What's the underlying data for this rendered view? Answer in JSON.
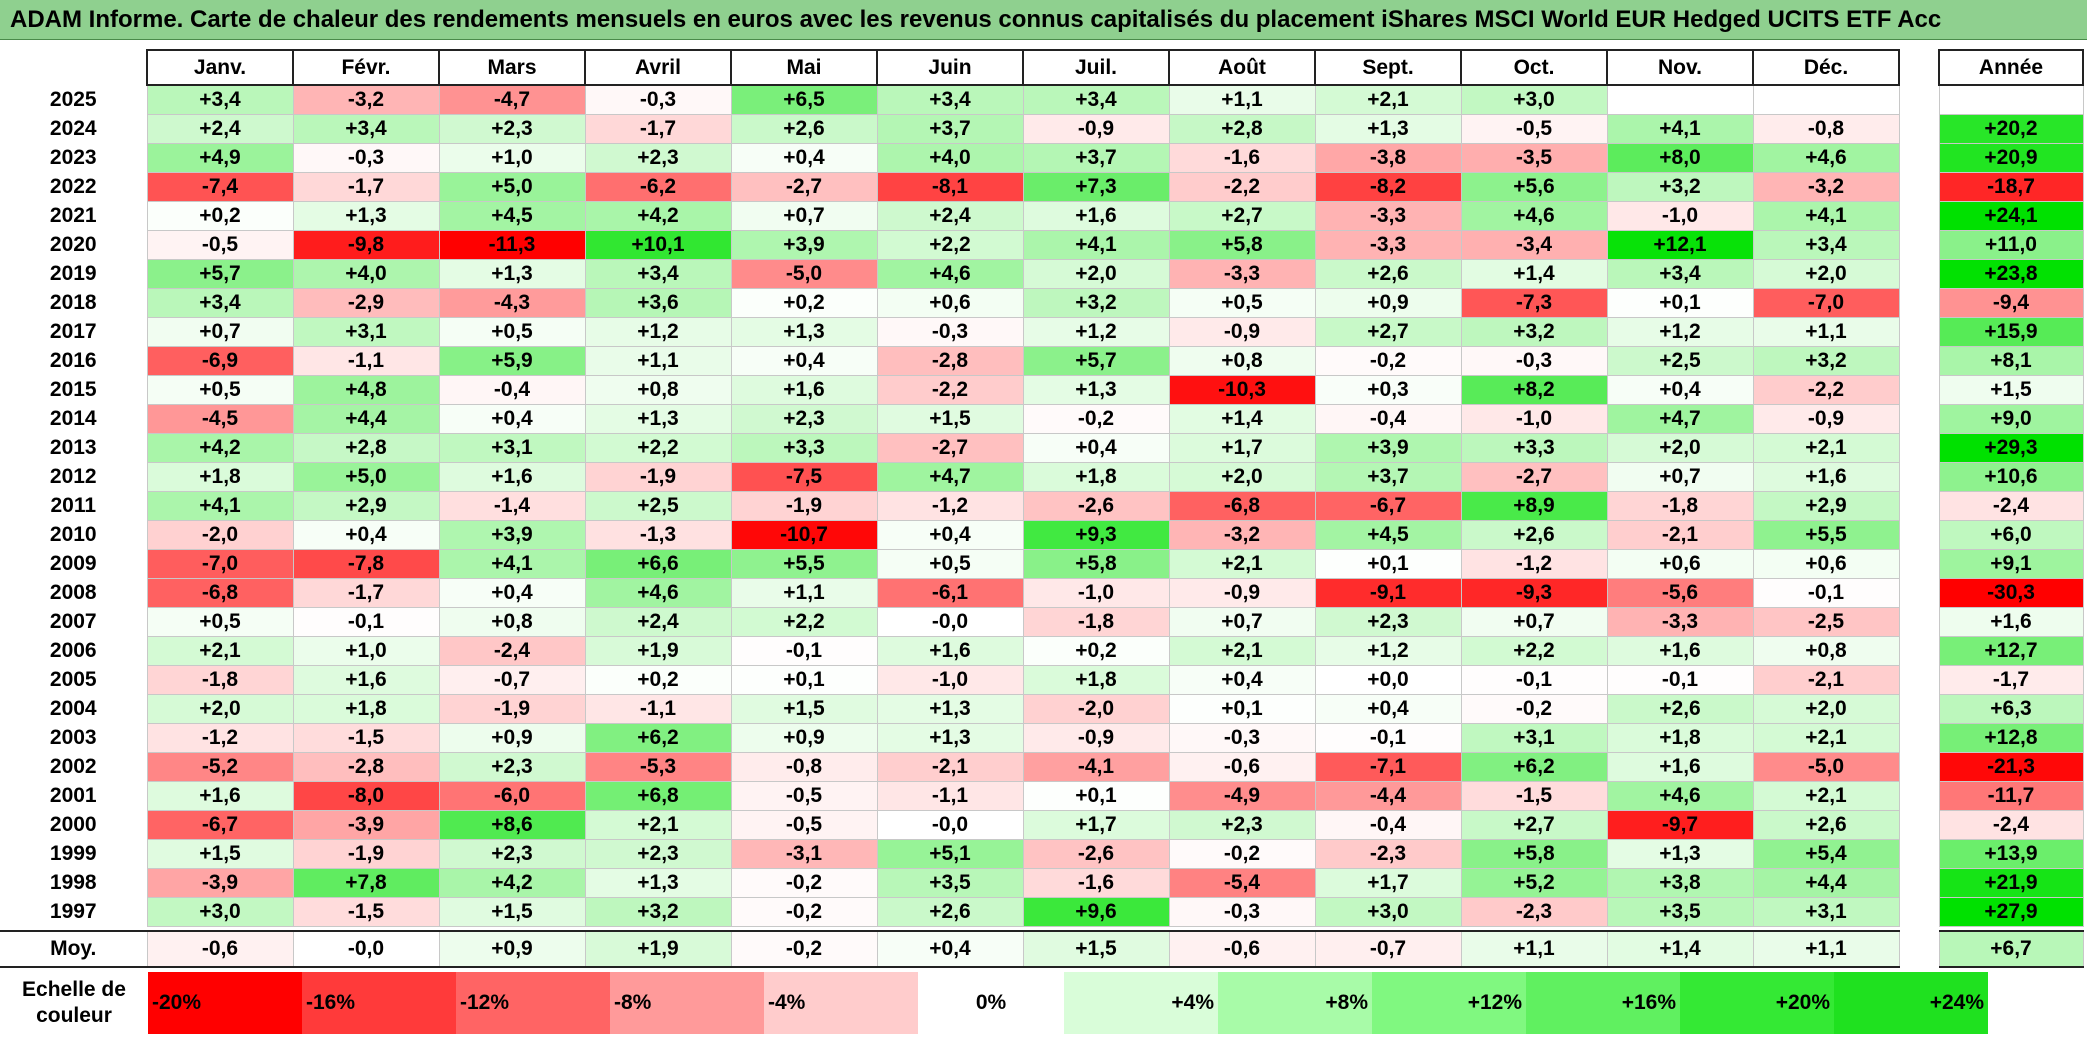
{
  "title": "ADAM Informe. Carte de chaleur des rendements mensuels en euros avec les revenus connus capitalisés du placement iShares MSCI World EUR Hedged UCITS ETF Acc",
  "chart_data": {
    "type": "heatmap",
    "columns": [
      "Janv.",
      "Févr.",
      "Mars",
      "Avril",
      "Mai",
      "Juin",
      "Juil.",
      "Août",
      "Sept.",
      "Oct.",
      "Nov.",
      "Déc."
    ],
    "year_header": "Année",
    "rows": [
      {
        "year": "2025",
        "months": [
          3.4,
          -3.2,
          -4.7,
          -0.3,
          6.5,
          3.4,
          3.4,
          1.1,
          2.1,
          3.0,
          null,
          null
        ],
        "annual": null
      },
      {
        "year": "2024",
        "months": [
          2.4,
          3.4,
          2.3,
          -1.7,
          2.6,
          3.7,
          -0.9,
          2.8,
          1.3,
          -0.5,
          4.1,
          -0.8
        ],
        "annual": 20.2
      },
      {
        "year": "2023",
        "months": [
          4.9,
          -0.3,
          1.0,
          2.3,
          0.4,
          4.0,
          3.7,
          -1.6,
          -3.8,
          -3.5,
          8.0,
          4.6
        ],
        "annual": 20.9
      },
      {
        "year": "2022",
        "months": [
          -7.4,
          -1.7,
          5.0,
          -6.2,
          -2.7,
          -8.1,
          7.3,
          -2.2,
          -8.2,
          5.6,
          3.2,
          -3.2
        ],
        "annual": -18.7
      },
      {
        "year": "2021",
        "months": [
          0.2,
          1.3,
          4.5,
          4.2,
          0.7,
          2.4,
          1.6,
          2.7,
          -3.3,
          4.6,
          -1.0,
          4.1
        ],
        "annual": 24.1
      },
      {
        "year": "2020",
        "months": [
          -0.5,
          -9.8,
          -11.3,
          10.1,
          3.9,
          2.2,
          4.1,
          5.8,
          -3.3,
          -3.4,
          12.1,
          3.4
        ],
        "annual": 11.0
      },
      {
        "year": "2019",
        "months": [
          5.7,
          4.0,
          1.3,
          3.4,
          -5.0,
          4.6,
          2.0,
          -3.3,
          2.6,
          1.4,
          3.4,
          2.0
        ],
        "annual": 23.8
      },
      {
        "year": "2018",
        "months": [
          3.4,
          -2.9,
          -4.3,
          3.6,
          0.2,
          0.6,
          3.2,
          0.5,
          0.9,
          -7.3,
          0.1,
          -7.0
        ],
        "annual": -9.4
      },
      {
        "year": "2017",
        "months": [
          0.7,
          3.1,
          0.5,
          1.2,
          1.3,
          -0.3,
          1.2,
          -0.9,
          2.7,
          3.2,
          1.2,
          1.1
        ],
        "annual": 15.9
      },
      {
        "year": "2016",
        "months": [
          -6.9,
          -1.1,
          5.9,
          1.1,
          0.4,
          -2.8,
          5.7,
          0.8,
          -0.2,
          -0.3,
          2.5,
          3.2
        ],
        "annual": 8.1
      },
      {
        "year": "2015",
        "months": [
          0.5,
          4.8,
          -0.4,
          0.8,
          1.6,
          -2.2,
          1.3,
          -10.3,
          0.3,
          8.2,
          0.4,
          -2.2
        ],
        "annual": 1.5
      },
      {
        "year": "2014",
        "months": [
          -4.5,
          4.4,
          0.4,
          1.3,
          2.3,
          1.5,
          -0.2,
          1.4,
          -0.4,
          -1.0,
          4.7,
          -0.9
        ],
        "annual": 9.0
      },
      {
        "year": "2013",
        "months": [
          4.2,
          2.8,
          3.1,
          2.2,
          3.3,
          -2.7,
          0.4,
          1.7,
          3.9,
          3.3,
          2.0,
          2.1
        ],
        "annual": 29.3
      },
      {
        "year": "2012",
        "months": [
          1.8,
          5.0,
          1.6,
          -1.9,
          -7.5,
          4.7,
          1.8,
          2.0,
          3.7,
          -2.7,
          0.7,
          1.6
        ],
        "annual": 10.6
      },
      {
        "year": "2011",
        "months": [
          4.1,
          2.9,
          -1.4,
          2.5,
          -1.9,
          -1.2,
          -2.6,
          -6.8,
          -6.7,
          8.9,
          -1.8,
          2.9
        ],
        "annual": -2.4
      },
      {
        "year": "2010",
        "months": [
          -2.0,
          0.4,
          3.9,
          -1.3,
          -10.7,
          0.4,
          9.3,
          -3.2,
          4.5,
          2.6,
          -2.1,
          5.5
        ],
        "annual": 6.0
      },
      {
        "year": "2009",
        "months": [
          -7.0,
          -7.8,
          4.1,
          6.6,
          5.5,
          0.5,
          5.8,
          2.1,
          0.1,
          -1.2,
          0.6,
          0.6
        ],
        "annual": 9.1
      },
      {
        "year": "2008",
        "months": [
          -6.8,
          -1.7,
          0.4,
          4.6,
          1.1,
          -6.1,
          -1.0,
          -0.9,
          -9.1,
          -9.3,
          -5.6,
          -0.1
        ],
        "annual": -30.3
      },
      {
        "year": "2007",
        "months": [
          0.5,
          -0.1,
          0.8,
          2.4,
          2.2,
          -0.0,
          -1.8,
          0.7,
          2.3,
          0.7,
          -3.3,
          -2.5
        ],
        "annual": 1.6
      },
      {
        "year": "2006",
        "months": [
          2.1,
          1.0,
          -2.4,
          1.9,
          -0.1,
          1.6,
          0.2,
          2.1,
          1.2,
          2.2,
          1.6,
          0.8
        ],
        "annual": 12.7
      },
      {
        "year": "2005",
        "months": [
          -1.8,
          1.6,
          -0.7,
          0.2,
          0.1,
          -1.0,
          1.8,
          0.4,
          0.0,
          -0.1,
          -0.1,
          -2.1
        ],
        "annual": -1.7
      },
      {
        "year": "2004",
        "months": [
          2.0,
          1.8,
          -1.9,
          -1.1,
          1.5,
          1.3,
          -2.0,
          0.1,
          0.4,
          -0.2,
          2.6,
          2.0
        ],
        "annual": 6.3
      },
      {
        "year": "2003",
        "months": [
          -1.2,
          -1.5,
          0.9,
          6.2,
          0.9,
          1.3,
          -0.9,
          -0.3,
          -0.1,
          3.1,
          1.8,
          2.1
        ],
        "annual": 12.8
      },
      {
        "year": "2002",
        "months": [
          -5.2,
          -2.8,
          2.3,
          -5.3,
          -0.8,
          -2.1,
          -4.1,
          -0.6,
          -7.1,
          6.2,
          1.6,
          -5.0
        ],
        "annual": -21.3
      },
      {
        "year": "2001",
        "months": [
          1.6,
          -8.0,
          -6.0,
          6.8,
          -0.5,
          -1.1,
          0.1,
          -4.9,
          -4.4,
          -1.5,
          4.6,
          2.1
        ],
        "annual": -11.7
      },
      {
        "year": "2000",
        "months": [
          -6.7,
          -3.9,
          8.6,
          2.1,
          -0.5,
          -0.0,
          1.7,
          2.3,
          -0.4,
          2.7,
          -9.7,
          2.6
        ],
        "annual": -2.4
      },
      {
        "year": "1999",
        "months": [
          1.5,
          -1.9,
          2.3,
          2.3,
          -3.1,
          5.1,
          -2.6,
          -0.2,
          -2.3,
          5.8,
          1.3,
          5.4
        ],
        "annual": 13.9
      },
      {
        "year": "1998",
        "months": [
          -3.9,
          7.8,
          4.2,
          1.3,
          -0.2,
          3.5,
          -1.6,
          -5.4,
          1.7,
          5.2,
          3.8,
          4.4
        ],
        "annual": 21.9
      },
      {
        "year": "1997",
        "months": [
          3.0,
          -1.5,
          1.5,
          3.2,
          -0.2,
          2.6,
          9.6,
          -0.3,
          3.0,
          -2.3,
          3.5,
          3.1
        ],
        "annual": 27.9
      }
    ],
    "average": {
      "label": "Moy.",
      "months": [
        -0.6,
        -0.0,
        0.9,
        1.9,
        -0.2,
        0.4,
        1.5,
        -0.6,
        -0.7,
        1.1,
        1.4,
        1.1
      ],
      "annual": 6.7
    },
    "color_scale": {
      "label": "Echelle de couleur",
      "steps": [
        {
          "label": "-20%",
          "color": "#ff0000"
        },
        {
          "label": "-16%",
          "color": "#ff3a3a"
        },
        {
          "label": "-12%",
          "color": "#ff6464"
        },
        {
          "label": "-8%",
          "color": "#ff9a9a"
        },
        {
          "label": "-4%",
          "color": "#ffcccc"
        },
        {
          "label": "0%",
          "color": "#ffffff"
        },
        {
          "label": "+4%",
          "color": "#d9fdd9"
        },
        {
          "label": "+8%",
          "color": "#a8fba8"
        },
        {
          "label": "+12%",
          "color": "#80f880"
        },
        {
          "label": "+16%",
          "color": "#60f060"
        },
        {
          "label": "+20%",
          "color": "#34e934"
        },
        {
          "label": "+24%",
          "color": "#1fe11f"
        }
      ]
    }
  }
}
